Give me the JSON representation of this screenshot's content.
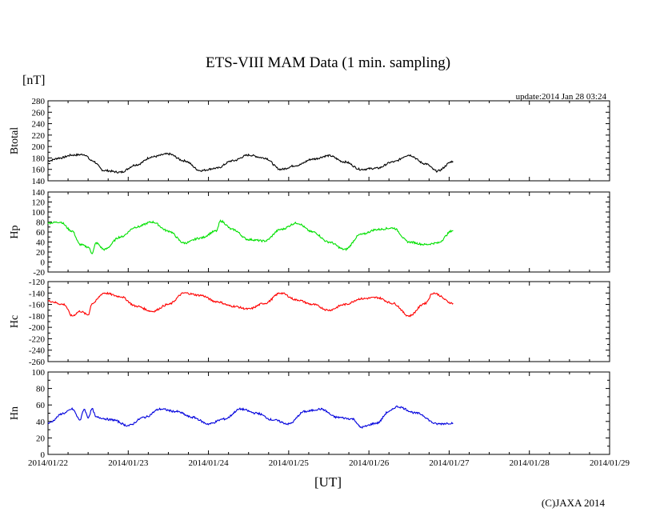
{
  "chart_data": {
    "type": "line",
    "title": "ETS-VIII MAM Data (1 min. sampling)",
    "unit_label": "[nT]",
    "update_text": "update:2014 Jan 28 03:24",
    "xlabel": "[UT]",
    "copyright": "(C)JAXA 2014",
    "x_ticks": [
      "2014/01/22",
      "2014/01/23",
      "2014/01/24",
      "2014/01/25",
      "2014/01/26",
      "2014/01/27",
      "2014/01/28",
      "2014/01/29"
    ],
    "xlim": [
      0,
      7
    ],
    "panels": [
      {
        "name": "Btotal",
        "ylabel": "Btotal",
        "color": "#000000",
        "ylim": [
          140,
          280
        ],
        "yticks": [
          140,
          160,
          180,
          200,
          220,
          240,
          260,
          280
        ],
        "x": [
          0,
          0.15,
          0.3,
          0.45,
          0.55,
          0.7,
          0.9,
          1.1,
          1.3,
          1.5,
          1.7,
          1.9,
          2.1,
          2.3,
          2.5,
          2.7,
          2.9,
          3.1,
          3.3,
          3.5,
          3.7,
          3.9,
          4.1,
          4.3,
          4.5,
          4.7,
          4.85,
          5.05
        ],
        "y": [
          175,
          180,
          185,
          186,
          175,
          158,
          155,
          168,
          182,
          187,
          175,
          158,
          162,
          175,
          185,
          180,
          160,
          167,
          178,
          184,
          173,
          160,
          162,
          173,
          185,
          170,
          157,
          174
        ]
      },
      {
        "name": "Hp",
        "ylabel": "Hp",
        "color": "#00e000",
        "ylim": [
          -20,
          140
        ],
        "yticks": [
          -20,
          0,
          20,
          40,
          60,
          80,
          100,
          120,
          140
        ],
        "x": [
          0,
          0.15,
          0.3,
          0.4,
          0.5,
          0.55,
          0.6,
          0.7,
          0.9,
          1.1,
          1.3,
          1.5,
          1.7,
          1.9,
          2.1,
          2.15,
          2.3,
          2.5,
          2.7,
          2.9,
          3.1,
          3.3,
          3.5,
          3.7,
          3.9,
          4.1,
          4.3,
          4.5,
          4.7,
          4.85,
          5.05
        ],
        "y": [
          78,
          80,
          62,
          35,
          30,
          18,
          38,
          25,
          50,
          70,
          80,
          62,
          38,
          48,
          62,
          82,
          65,
          45,
          42,
          65,
          78,
          60,
          40,
          25,
          55,
          65,
          68,
          40,
          35,
          38,
          63
        ]
      },
      {
        "name": "Hc",
        "ylabel": "Hc",
        "color": "#ff0000",
        "ylim": [
          -260,
          -120
        ],
        "yticks": [
          -260,
          -240,
          -220,
          -200,
          -180,
          -160,
          -140,
          -120
        ],
        "x": [
          0,
          0.2,
          0.3,
          0.4,
          0.5,
          0.55,
          0.7,
          0.9,
          1.1,
          1.3,
          1.5,
          1.7,
          1.9,
          2.1,
          2.3,
          2.5,
          2.7,
          2.9,
          3.1,
          3.3,
          3.5,
          3.7,
          3.9,
          4.1,
          4.3,
          4.5,
          4.7,
          4.8,
          5.05
        ],
        "y": [
          -154,
          -160,
          -180,
          -172,
          -178,
          -158,
          -140,
          -146,
          -163,
          -172,
          -160,
          -140,
          -144,
          -155,
          -163,
          -168,
          -158,
          -140,
          -152,
          -160,
          -170,
          -160,
          -150,
          -148,
          -158,
          -180,
          -158,
          -140,
          -158
        ]
      },
      {
        "name": "Hn",
        "ylabel": "Hn",
        "color": "#0000dd",
        "ylim": [
          0,
          100
        ],
        "yticks": [
          0,
          20,
          40,
          60,
          80,
          100
        ],
        "x": [
          0,
          0.2,
          0.3,
          0.4,
          0.45,
          0.5,
          0.55,
          0.6,
          0.8,
          1.0,
          1.2,
          1.4,
          1.6,
          1.8,
          2.0,
          2.2,
          2.4,
          2.6,
          2.8,
          3.0,
          3.2,
          3.4,
          3.6,
          3.8,
          3.9,
          4.1,
          4.25,
          4.35,
          4.6,
          4.85,
          5.05
        ],
        "y": [
          38,
          50,
          55,
          42,
          55,
          45,
          55,
          45,
          42,
          35,
          45,
          55,
          52,
          45,
          37,
          43,
          55,
          50,
          42,
          37,
          52,
          55,
          45,
          43,
          33,
          38,
          52,
          58,
          50,
          37,
          38
        ]
      }
    ]
  }
}
